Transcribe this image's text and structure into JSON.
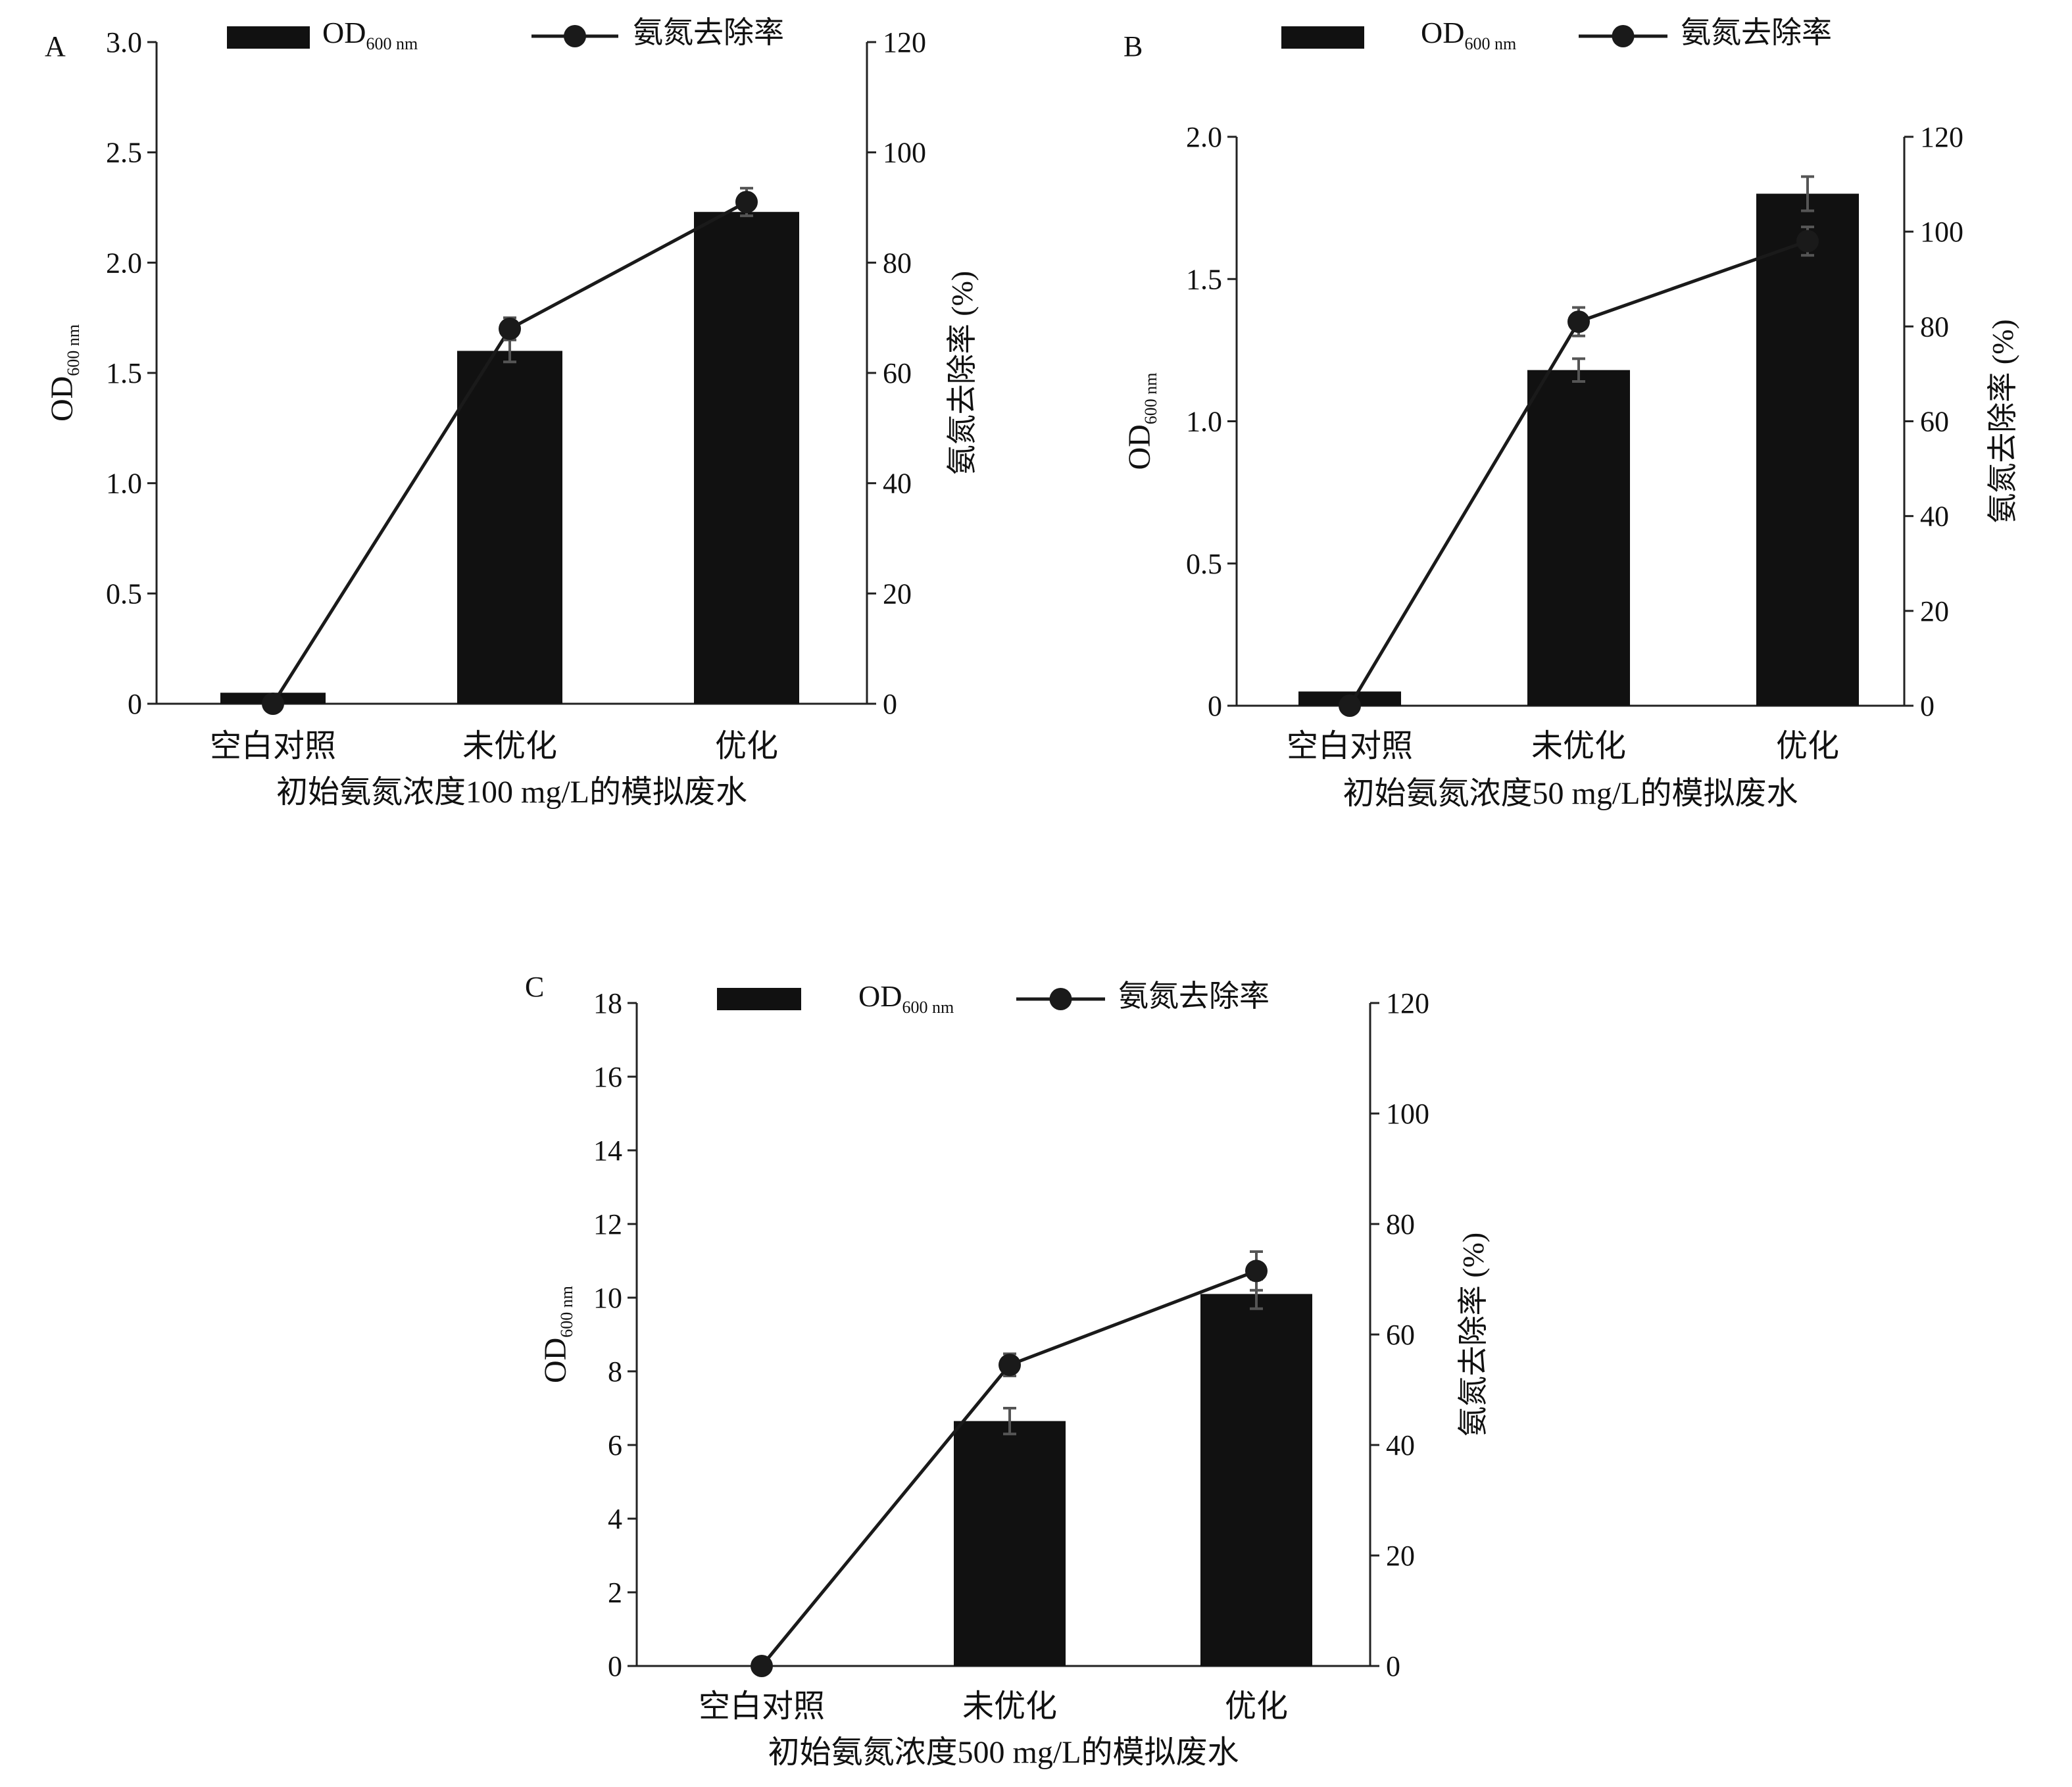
{
  "chart_data": [
    {
      "panel": "A",
      "type": "bar",
      "categories": [
        "空白对照",
        "未优化",
        "优化"
      ],
      "xlabel": "初始氨氮浓度100 mg/L的模拟废水",
      "ylabel": {
        "main": "OD",
        "sub": "600 nm"
      },
      "y2label": "氨氮去除率 (%)",
      "ylim": [
        0,
        3.0
      ],
      "yticks": [
        0,
        0.5,
        1.0,
        1.5,
        2.0,
        2.5,
        3.0
      ],
      "ytick_labels": [
        "0",
        "0.5",
        "1.0",
        "1.5",
        "2.0",
        "2.5",
        "3.0"
      ],
      "y2lim": [
        0,
        120
      ],
      "y2ticks": [
        0,
        20,
        40,
        60,
        80,
        100,
        120
      ],
      "y2tick_labels": [
        "0",
        "20",
        "40",
        "60",
        "80",
        "100",
        "120"
      ],
      "series": [
        {
          "name": "OD",
          "name_sub": "600 nm",
          "type": "bar",
          "axis": "left",
          "values": [
            0.05,
            1.6,
            2.23
          ],
          "errors": [
            0,
            0.05,
            0
          ]
        },
        {
          "name": "氨氮去除率",
          "type": "line",
          "axis": "right",
          "values": [
            0,
            68,
            91
          ],
          "errors": [
            0,
            2,
            2.5
          ]
        }
      ],
      "legend": "top",
      "grid": false
    },
    {
      "panel": "B",
      "type": "bar",
      "categories": [
        "空白对照",
        "未优化",
        "优化"
      ],
      "xlabel": "初始氨氮浓度50 mg/L的模拟废水",
      "ylabel": {
        "main": "OD",
        "sub": "600 nm"
      },
      "y2label": "氨氮去除率 (%)",
      "ylim": [
        0,
        2.0
      ],
      "yticks": [
        0,
        0.5,
        1.0,
        1.5,
        2.0
      ],
      "ytick_labels": [
        "0",
        "0.5",
        "1.0",
        "1.5",
        "2.0"
      ],
      "y2lim": [
        0,
        120
      ],
      "y2ticks": [
        0,
        20,
        40,
        60,
        80,
        100,
        120
      ],
      "y2tick_labels": [
        "0",
        "20",
        "40",
        "60",
        "80",
        "100",
        "120"
      ],
      "series": [
        {
          "name": "OD",
          "name_sub": "600 nm",
          "type": "bar",
          "axis": "left",
          "values": [
            0.05,
            1.18,
            1.8
          ],
          "errors": [
            0,
            0.04,
            0.06
          ]
        },
        {
          "name": "氨氮去除率",
          "type": "line",
          "axis": "right",
          "values": [
            0,
            81,
            98
          ],
          "errors": [
            0,
            3,
            3
          ]
        }
      ],
      "legend": "top",
      "grid": false
    },
    {
      "panel": "C",
      "type": "bar",
      "categories": [
        "空白对照",
        "未优化",
        "优化"
      ],
      "xlabel": "初始氨氮浓度500 mg/L的模拟废水",
      "ylabel": {
        "main": "OD",
        "sub": "600 nm"
      },
      "y2label": "氨氮去除率 (%)",
      "ylim": [
        0,
        18
      ],
      "yticks": [
        0,
        2,
        4,
        6,
        8,
        10,
        12,
        14,
        16,
        18
      ],
      "ytick_labels": [
        "0",
        "2",
        "4",
        "6",
        "8",
        "10",
        "12",
        "14",
        "16",
        "18"
      ],
      "y2lim": [
        0,
        120
      ],
      "y2ticks": [
        0,
        20,
        40,
        60,
        80,
        100,
        120
      ],
      "y2tick_labels": [
        "0",
        "20",
        "40",
        "60",
        "80",
        "100",
        "120"
      ],
      "series": [
        {
          "name": "OD",
          "name_sub": "600 nm",
          "type": "bar",
          "axis": "left",
          "values": [
            0,
            6.65,
            10.1
          ],
          "errors": [
            0,
            0.35,
            0.4
          ]
        },
        {
          "name": "氨氮去除率",
          "type": "line",
          "axis": "right",
          "values": [
            0,
            54.5,
            71.5
          ],
          "errors": [
            0,
            2,
            3.5
          ]
        }
      ],
      "legend": "top",
      "grid": false
    }
  ],
  "colors": {
    "bar": "#111111",
    "line": "#1a1a1a",
    "errorbar": "#555555",
    "axis": "#222222",
    "text": "#111111"
  }
}
